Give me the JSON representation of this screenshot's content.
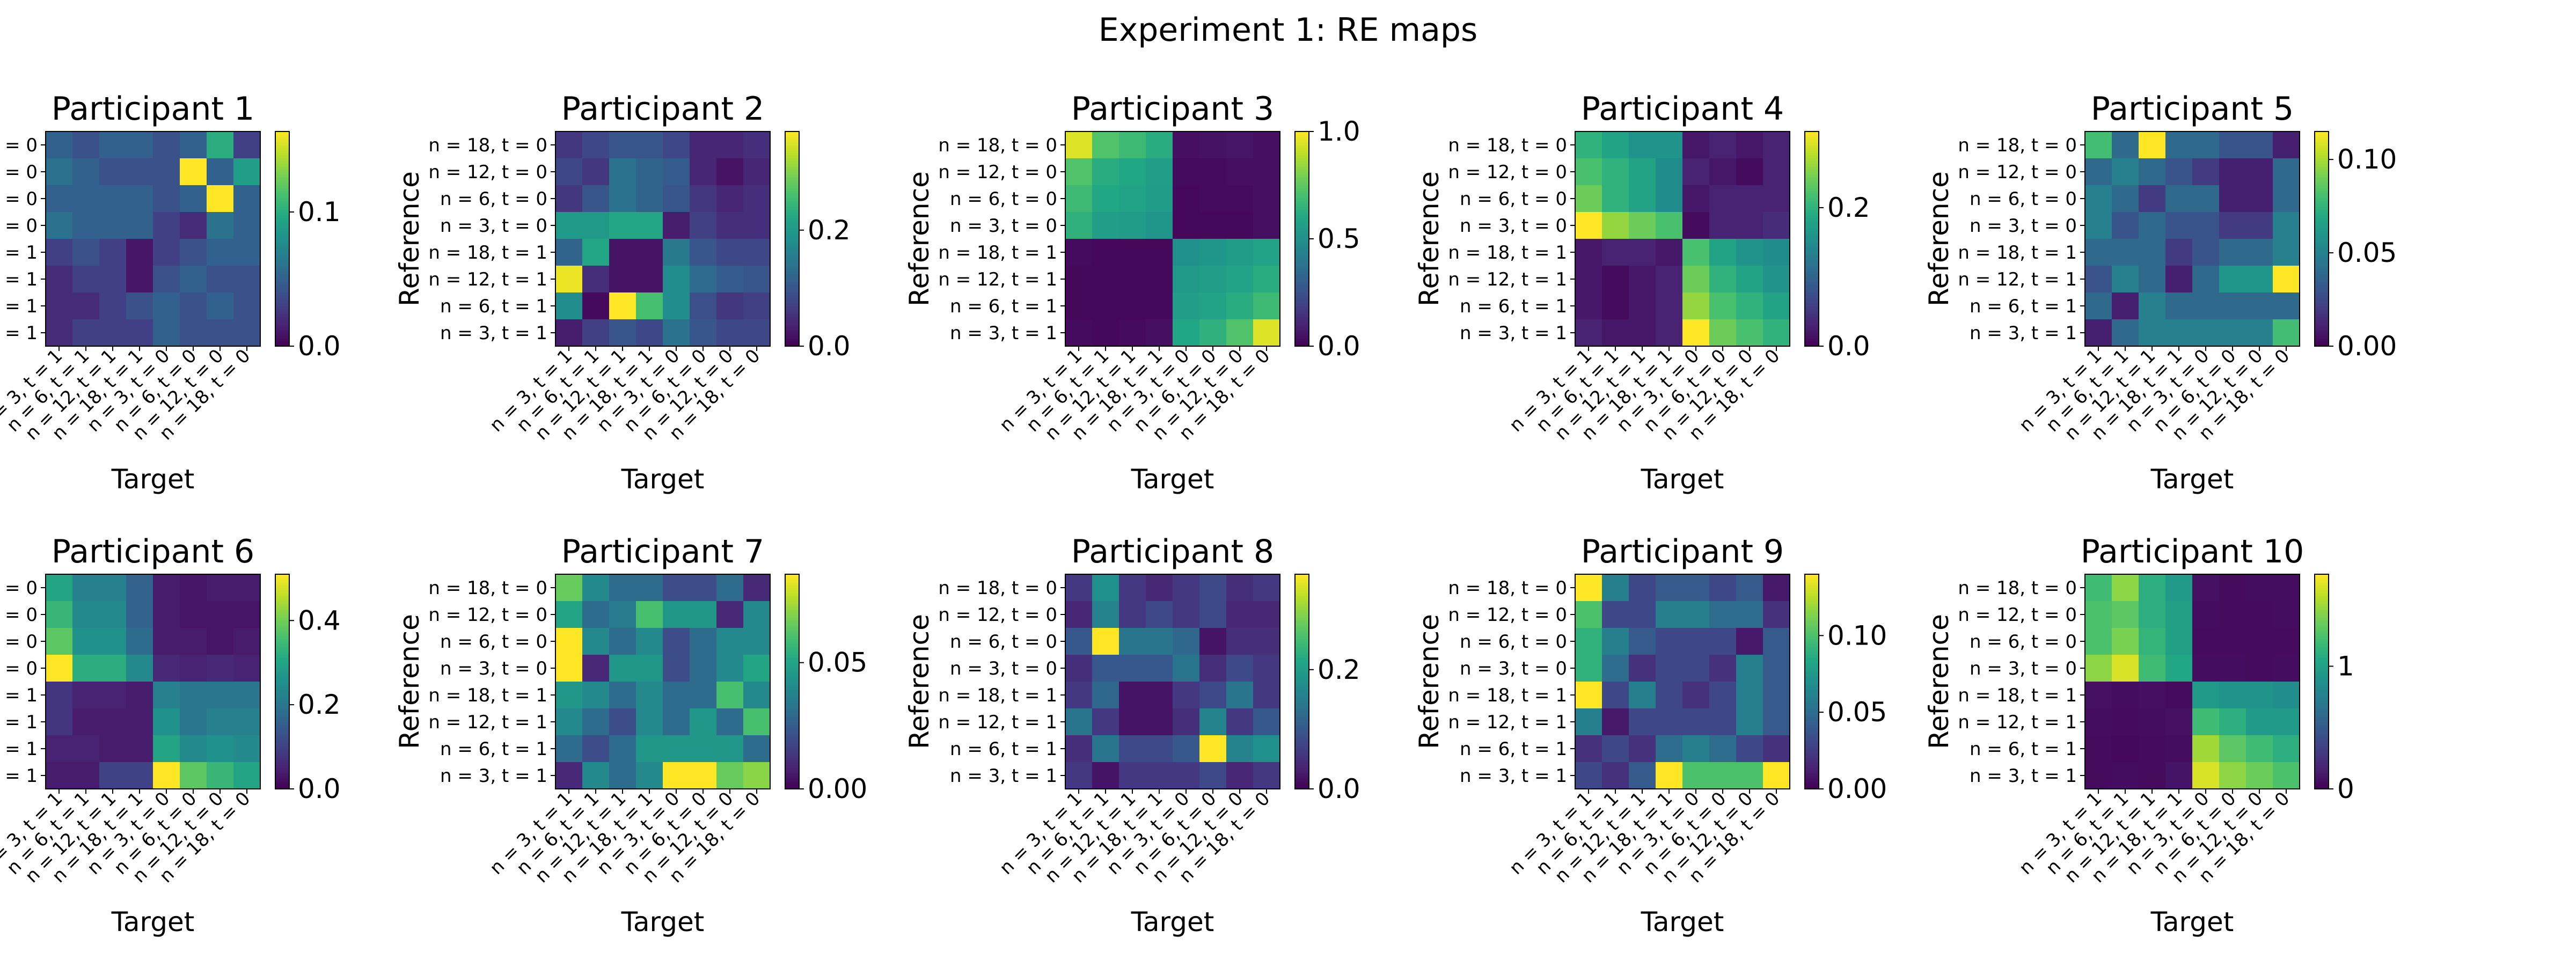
{
  "figure": {
    "title": "Experiment 1: RE maps"
  },
  "chart_data": {
    "type": "heatmap",
    "title": "Experiment 1: RE maps",
    "colormap": "viridis",
    "xlabel": "Target",
    "ylabel": "Reference",
    "y_categories": [
      "n = 18, t = 0",
      "n = 12, t = 0",
      "n = 6, t = 0",
      "n = 3, t = 0",
      "n = 18, t = 1",
      "n = 12, t = 1",
      "n = 6, t = 1",
      "n = 3, t = 1"
    ],
    "x_categories": [
      "n = 3, t = 1",
      "n = 6, t = 1",
      "n = 12, t = 1",
      "n = 18, t = 1",
      "n = 3, t = 0",
      "n = 6, t = 0",
      "n = 12, t = 0",
      "n = 18, t = 0"
    ],
    "panels": [
      {
        "title": "Participant 1",
        "vmin": 0,
        "vmax": 0.16,
        "colorbar_ticks": [
          {
            "value": 0,
            "label": "0.0"
          },
          {
            "value": 0.1,
            "label": "0.1"
          }
        ],
        "matrix": [
          [
            0.05,
            0.04,
            0.05,
            0.05,
            0.04,
            0.05,
            0.1,
            0.03
          ],
          [
            0.06,
            0.05,
            0.04,
            0.04,
            0.04,
            0.16,
            0.05,
            0.09
          ],
          [
            0.05,
            0.05,
            0.05,
            0.05,
            0.04,
            0.05,
            0.16,
            0.05
          ],
          [
            0.06,
            0.05,
            0.05,
            0.05,
            0.03,
            0.02,
            0.06,
            0.05
          ],
          [
            0.03,
            0.04,
            0.03,
            0.01,
            0.03,
            0.04,
            0.05,
            0.05
          ],
          [
            0.02,
            0.03,
            0.03,
            0.01,
            0.04,
            0.05,
            0.04,
            0.04
          ],
          [
            0.02,
            0.02,
            0.03,
            0.04,
            0.05,
            0.04,
            0.05,
            0.04
          ],
          [
            0.02,
            0.03,
            0.03,
            0.03,
            0.05,
            0.04,
            0.04,
            0.04
          ]
        ]
      },
      {
        "title": "Participant 2",
        "vmin": 0,
        "vmax": 0.37,
        "colorbar_ticks": [
          {
            "value": 0,
            "label": "0.0"
          },
          {
            "value": 0.2,
            "label": "0.2"
          }
        ],
        "matrix": [
          [
            0.06,
            0.08,
            0.1,
            0.1,
            0.08,
            0.04,
            0.04,
            0.05
          ],
          [
            0.08,
            0.06,
            0.14,
            0.12,
            0.11,
            0.04,
            0.02,
            0.04
          ],
          [
            0.06,
            0.1,
            0.14,
            0.12,
            0.1,
            0.06,
            0.04,
            0.05
          ],
          [
            0.2,
            0.2,
            0.22,
            0.22,
            0.03,
            0.07,
            0.05,
            0.05
          ],
          [
            0.12,
            0.22,
            0.02,
            0.02,
            0.15,
            0.1,
            0.08,
            0.08
          ],
          [
            0.36,
            0.05,
            0.02,
            0.02,
            0.18,
            0.13,
            0.11,
            0.1
          ],
          [
            0.18,
            0.01,
            0.37,
            0.26,
            0.18,
            0.09,
            0.06,
            0.07
          ],
          [
            0.03,
            0.07,
            0.1,
            0.08,
            0.14,
            0.1,
            0.08,
            0.08
          ]
        ]
      },
      {
        "title": "Participant 3",
        "vmin": 0,
        "vmax": 1.0,
        "colorbar_ticks": [
          {
            "value": 0,
            "label": "0.0"
          },
          {
            "value": 0.5,
            "label": "0.5"
          },
          {
            "value": 1.0,
            "label": "1.0"
          }
        ],
        "matrix": [
          [
            0.95,
            0.72,
            0.68,
            0.62,
            0.04,
            0.05,
            0.06,
            0.04
          ],
          [
            0.72,
            0.62,
            0.6,
            0.56,
            0.03,
            0.03,
            0.04,
            0.04
          ],
          [
            0.68,
            0.6,
            0.58,
            0.55,
            0.02,
            0.03,
            0.03,
            0.04
          ],
          [
            0.64,
            0.56,
            0.55,
            0.52,
            0.02,
            0.02,
            0.02,
            0.04
          ],
          [
            0.03,
            0.02,
            0.02,
            0.02,
            0.5,
            0.52,
            0.55,
            0.58
          ],
          [
            0.02,
            0.02,
            0.02,
            0.02,
            0.54,
            0.56,
            0.58,
            0.62
          ],
          [
            0.02,
            0.02,
            0.02,
            0.02,
            0.56,
            0.58,
            0.62,
            0.68
          ],
          [
            0.03,
            0.02,
            0.03,
            0.04,
            0.6,
            0.64,
            0.72,
            0.95
          ]
        ]
      },
      {
        "title": "Participant 4",
        "vmin": 0,
        "vmax": 0.31,
        "colorbar_ticks": [
          {
            "value": 0,
            "label": "0.0"
          },
          {
            "value": 0.2,
            "label": "0.2"
          }
        ],
        "matrix": [
          [
            0.2,
            0.18,
            0.16,
            0.16,
            0.02,
            0.03,
            0.02,
            0.03
          ],
          [
            0.22,
            0.2,
            0.18,
            0.15,
            0.03,
            0.02,
            0.01,
            0.03
          ],
          [
            0.24,
            0.2,
            0.18,
            0.15,
            0.02,
            0.03,
            0.03,
            0.03
          ],
          [
            0.31,
            0.26,
            0.24,
            0.22,
            0.01,
            0.03,
            0.03,
            0.04
          ],
          [
            0.02,
            0.03,
            0.03,
            0.02,
            0.22,
            0.18,
            0.16,
            0.15
          ],
          [
            0.02,
            0.01,
            0.02,
            0.03,
            0.24,
            0.2,
            0.18,
            0.16
          ],
          [
            0.02,
            0.01,
            0.02,
            0.03,
            0.26,
            0.22,
            0.2,
            0.18
          ],
          [
            0.03,
            0.02,
            0.02,
            0.03,
            0.31,
            0.24,
            0.22,
            0.2
          ]
        ]
      },
      {
        "title": "Participant 5",
        "vmin": 0,
        "vmax": 0.115,
        "colorbar_ticks": [
          {
            "value": 0,
            "label": "0.00"
          },
          {
            "value": 0.05,
            "label": "0.05"
          },
          {
            "value": 0.1,
            "label": "0.10"
          }
        ],
        "matrix": [
          [
            0.08,
            0.04,
            0.115,
            0.04,
            0.04,
            0.03,
            0.03,
            0.01
          ],
          [
            0.04,
            0.05,
            0.04,
            0.03,
            0.02,
            0.01,
            0.01,
            0.04
          ],
          [
            0.05,
            0.04,
            0.02,
            0.04,
            0.04,
            0.01,
            0.01,
            0.04
          ],
          [
            0.05,
            0.03,
            0.04,
            0.03,
            0.03,
            0.02,
            0.02,
            0.05
          ],
          [
            0.04,
            0.04,
            0.04,
            0.02,
            0.03,
            0.04,
            0.04,
            0.05
          ],
          [
            0.03,
            0.05,
            0.04,
            0.01,
            0.04,
            0.06,
            0.06,
            0.115
          ],
          [
            0.04,
            0.01,
            0.05,
            0.04,
            0.04,
            0.04,
            0.04,
            0.04
          ],
          [
            0.01,
            0.04,
            0.05,
            0.05,
            0.05,
            0.05,
            0.05,
            0.08
          ]
        ]
      },
      {
        "title": "Participant 6",
        "vmin": 0,
        "vmax": 0.51,
        "colorbar_ticks": [
          {
            "value": 0,
            "label": "0.0"
          },
          {
            "value": 0.2,
            "label": "0.2"
          },
          {
            "value": 0.4,
            "label": "0.4"
          }
        ],
        "matrix": [
          [
            0.3,
            0.22,
            0.22,
            0.16,
            0.04,
            0.03,
            0.04,
            0.04
          ],
          [
            0.34,
            0.24,
            0.24,
            0.16,
            0.04,
            0.03,
            0.03,
            0.03
          ],
          [
            0.38,
            0.26,
            0.26,
            0.18,
            0.04,
            0.04,
            0.03,
            0.04
          ],
          [
            0.51,
            0.32,
            0.32,
            0.24,
            0.06,
            0.05,
            0.06,
            0.05
          ],
          [
            0.08,
            0.05,
            0.05,
            0.04,
            0.22,
            0.2,
            0.2,
            0.2
          ],
          [
            0.08,
            0.04,
            0.04,
            0.04,
            0.26,
            0.2,
            0.22,
            0.22
          ],
          [
            0.05,
            0.05,
            0.04,
            0.04,
            0.3,
            0.24,
            0.26,
            0.24
          ],
          [
            0.04,
            0.04,
            0.1,
            0.1,
            0.51,
            0.38,
            0.34,
            0.3
          ]
        ]
      },
      {
        "title": "Participant 7",
        "vmin": 0,
        "vmax": 0.085,
        "colorbar_ticks": [
          {
            "value": 0,
            "label": "0.00"
          },
          {
            "value": 0.05,
            "label": "0.05"
          }
        ],
        "matrix": [
          [
            0.065,
            0.04,
            0.03,
            0.03,
            0.02,
            0.02,
            0.03,
            0.01
          ],
          [
            0.05,
            0.03,
            0.035,
            0.06,
            0.045,
            0.045,
            0.01,
            0.04
          ],
          [
            0.085,
            0.04,
            0.03,
            0.04,
            0.02,
            0.03,
            0.04,
            0.04
          ],
          [
            0.085,
            0.01,
            0.045,
            0.045,
            0.02,
            0.03,
            0.04,
            0.05
          ],
          [
            0.045,
            0.04,
            0.03,
            0.04,
            0.03,
            0.03,
            0.06,
            0.04
          ],
          [
            0.04,
            0.03,
            0.02,
            0.04,
            0.03,
            0.045,
            0.03,
            0.06
          ],
          [
            0.03,
            0.02,
            0.03,
            0.045,
            0.045,
            0.045,
            0.045,
            0.03
          ],
          [
            0.01,
            0.04,
            0.03,
            0.04,
            0.085,
            0.085,
            0.065,
            0.07
          ]
        ]
      },
      {
        "title": "Participant 8",
        "vmin": 0,
        "vmax": 0.36,
        "colorbar_ticks": [
          {
            "value": 0,
            "label": "0.0"
          },
          {
            "value": 0.2,
            "label": "0.2"
          }
        ],
        "matrix": [
          [
            0.06,
            0.18,
            0.06,
            0.04,
            0.06,
            0.08,
            0.05,
            0.06
          ],
          [
            0.04,
            0.16,
            0.06,
            0.08,
            0.06,
            0.08,
            0.04,
            0.04
          ],
          [
            0.1,
            0.36,
            0.14,
            0.14,
            0.12,
            0.02,
            0.05,
            0.05
          ],
          [
            0.05,
            0.1,
            0.1,
            0.1,
            0.14,
            0.05,
            0.08,
            0.06
          ],
          [
            0.06,
            0.12,
            0.02,
            0.02,
            0.06,
            0.08,
            0.14,
            0.06
          ],
          [
            0.14,
            0.06,
            0.02,
            0.02,
            0.05,
            0.16,
            0.06,
            0.1
          ],
          [
            0.05,
            0.14,
            0.08,
            0.08,
            0.1,
            0.36,
            0.16,
            0.18
          ],
          [
            0.06,
            0.02,
            0.06,
            0.06,
            0.06,
            0.08,
            0.04,
            0.06
          ]
        ]
      },
      {
        "title": "Participant 9",
        "vmin": 0,
        "vmax": 0.14,
        "colorbar_ticks": [
          {
            "value": 0,
            "label": "0.00"
          },
          {
            "value": 0.05,
            "label": "0.05"
          },
          {
            "value": 0.1,
            "label": "0.10"
          }
        ],
        "matrix": [
          [
            0.14,
            0.06,
            0.03,
            0.04,
            0.04,
            0.03,
            0.04,
            0.01
          ],
          [
            0.1,
            0.03,
            0.03,
            0.06,
            0.06,
            0.05,
            0.05,
            0.02
          ],
          [
            0.09,
            0.06,
            0.04,
            0.03,
            0.03,
            0.03,
            0.01,
            0.04
          ],
          [
            0.09,
            0.05,
            0.02,
            0.03,
            0.03,
            0.02,
            0.06,
            0.04
          ],
          [
            0.14,
            0.03,
            0.06,
            0.03,
            0.02,
            0.03,
            0.06,
            0.04
          ],
          [
            0.06,
            0.01,
            0.03,
            0.03,
            0.03,
            0.03,
            0.06,
            0.04
          ],
          [
            0.02,
            0.03,
            0.02,
            0.05,
            0.06,
            0.05,
            0.03,
            0.02
          ],
          [
            0.03,
            0.02,
            0.04,
            0.14,
            0.1,
            0.1,
            0.1,
            0.14
          ]
        ]
      },
      {
        "title": "Participant 10",
        "vmin": 0,
        "vmax": 1.75,
        "colorbar_ticks": [
          {
            "value": 0,
            "label": "0"
          },
          {
            "value": 1,
            "label": "1"
          }
        ],
        "matrix": [
          [
            1.2,
            1.45,
            1.1,
            0.95,
            0.08,
            0.05,
            0.06,
            0.06
          ],
          [
            1.25,
            1.3,
            1.1,
            1.0,
            0.06,
            0.05,
            0.05,
            0.06
          ],
          [
            1.25,
            1.4,
            1.15,
            1.0,
            0.05,
            0.05,
            0.05,
            0.05
          ],
          [
            1.45,
            1.65,
            1.2,
            1.05,
            0.06,
            0.06,
            0.05,
            0.06
          ],
          [
            0.08,
            0.06,
            0.07,
            0.05,
            0.95,
            0.9,
            0.9,
            0.85
          ],
          [
            0.06,
            0.05,
            0.06,
            0.08,
            1.2,
            1.1,
            0.95,
            0.95
          ],
          [
            0.05,
            0.04,
            0.05,
            0.06,
            1.5,
            1.3,
            1.2,
            1.1
          ],
          [
            0.05,
            0.06,
            0.05,
            0.1,
            1.65,
            1.45,
            1.35,
            1.25
          ]
        ]
      }
    ]
  }
}
